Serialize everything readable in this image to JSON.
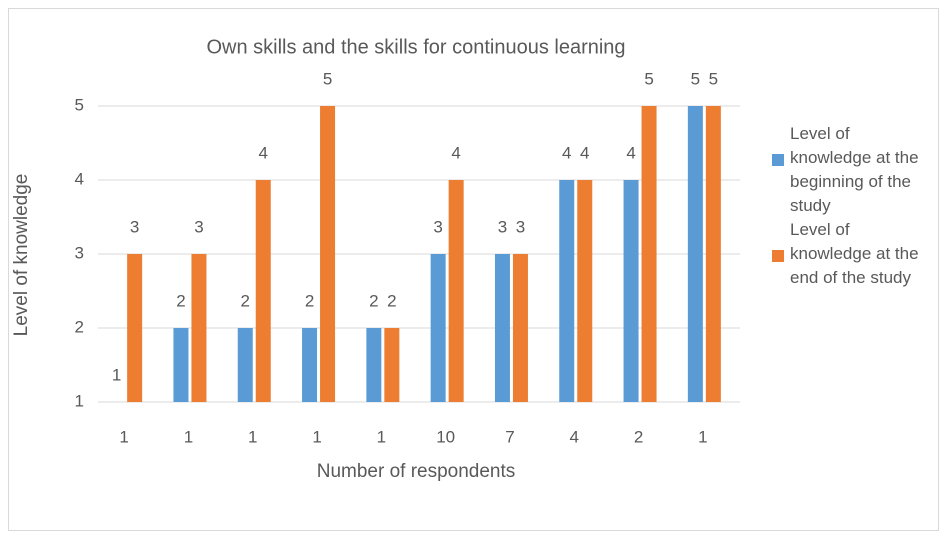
{
  "chart_data": {
    "type": "bar",
    "title": "Own skills and the skills for continuous learning",
    "x_label": "Number of respondents",
    "y_label": "Level of knowledge",
    "categories": [
      "1",
      "1",
      "1",
      "1",
      "1",
      "10",
      "7",
      "4",
      "2",
      "1"
    ],
    "series": [
      {
        "name": "Level of knowledge at the beginning of the study",
        "color": "#5b9bd5",
        "values": [
          1,
          2,
          2,
          2,
          2,
          3,
          3,
          4,
          4,
          5
        ]
      },
      {
        "name": "Level of knowledge at the end of the study",
        "color": "#ed7d31",
        "values": [
          3,
          3,
          4,
          5,
          2,
          4,
          3,
          4,
          5,
          5
        ]
      }
    ],
    "ylim": [
      1,
      5
    ],
    "yticks": [
      1,
      2,
      3,
      4,
      5
    ],
    "grid": true,
    "legend": "right"
  }
}
